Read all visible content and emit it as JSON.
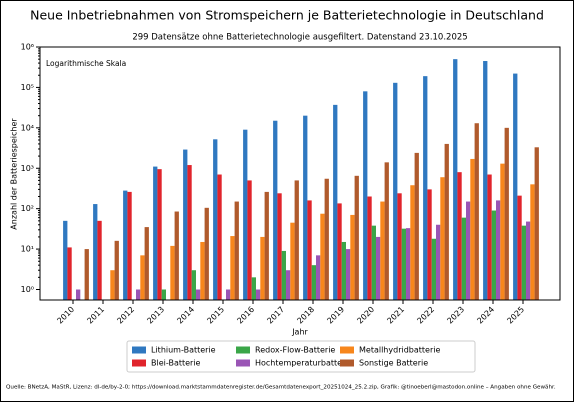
{
  "chart_data": {
    "type": "bar",
    "title": "Neue Inbetriebnahmen von Stromspeichern je Batterietechnologie in Deutschland",
    "subtitle": "299 Datensätze ohne Batterietechnologie ausgefiltert. Datenstand 23.10.2025",
    "annotation": "Logarithmische Skala",
    "ylabel": "Anzahl der Batteriespeicher",
    "xlabel": "Jahr",
    "source": "Quelle: BNetzA, MaStR, Lizenz: dl-de/by-2-0; https://download.marktstammdatenregister.de/Gesamtdatenexport_20251024_25.2.zip, Grafik: @tinoeberl@mastodon.online – Angaben ohne Gewähr.",
    "log_scale": true,
    "categories": [
      "2010",
      "2011",
      "2012",
      "2013",
      "2014",
      "2015",
      "2016",
      "2017",
      "2018",
      "2019",
      "2020",
      "2021",
      "2022",
      "2023",
      "2024",
      "2025"
    ],
    "series": [
      {
        "name": "Lithium-Batterie",
        "color": "#2f78c0",
        "values": [
          50,
          130,
          280,
          1100,
          2900,
          5200,
          9000,
          15000,
          20000,
          37000,
          80000,
          130000,
          190000,
          500000,
          450000,
          220000
        ]
      },
      {
        "name": "Blei-Batterie",
        "color": "#e0242c",
        "values": [
          11,
          50,
          260,
          950,
          1200,
          700,
          500,
          240,
          160,
          135,
          200,
          240,
          300,
          800,
          700,
          210
        ]
      },
      {
        "name": "Redox-Flow-Batterie",
        "color": "#3aa648",
        "values": [
          null,
          null,
          null,
          1,
          3,
          null,
          2,
          9,
          4,
          15,
          38,
          32,
          18,
          60,
          90,
          38
        ]
      },
      {
        "name": "Hochtemperaturbatterie",
        "color": "#9a55b5",
        "values": [
          1,
          null,
          1,
          null,
          1,
          1,
          1,
          3,
          7,
          10,
          20,
          33,
          40,
          150,
          160,
          48
        ]
      },
      {
        "name": "Metallhydridbatterie",
        "color": "#f7861c",
        "values": [
          null,
          3,
          7,
          12,
          15,
          21,
          20,
          45,
          75,
          70,
          150,
          380,
          600,
          1700,
          1300,
          400
        ]
      },
      {
        "name": "Sonstige Batterie",
        "color": "#b05a2c",
        "values": [
          10,
          16,
          35,
          85,
          105,
          150,
          260,
          500,
          550,
          650,
          1400,
          2400,
          4000,
          13000,
          10000,
          3300
        ]
      }
    ],
    "ylim": [
      0.55,
      1000000
    ],
    "yticks": [
      {
        "value": 1,
        "label": "10⁰"
      },
      {
        "value": 10,
        "label": "10¹"
      },
      {
        "value": 100,
        "label": "10²"
      },
      {
        "value": 1000,
        "label": "10³"
      },
      {
        "value": 10000,
        "label": "10⁴"
      },
      {
        "value": 100000,
        "label": "10⁵"
      },
      {
        "value": 1000000,
        "label": "10⁶"
      }
    ],
    "legend": "bottom"
  }
}
